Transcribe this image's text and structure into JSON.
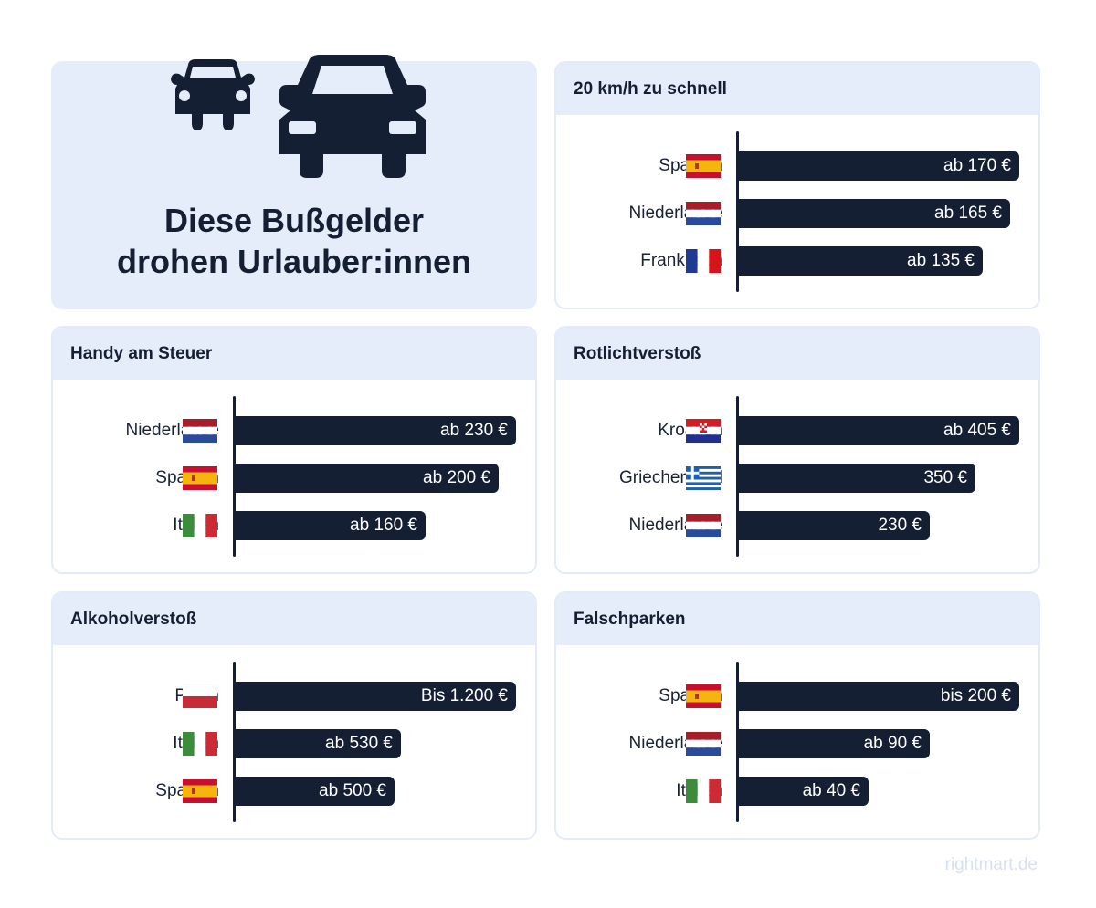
{
  "hero": {
    "title_line1": "Diese Bußgelder",
    "title_line2": "drohen Urlauber:innen",
    "icons": [
      "small-car-icon",
      "large-car-icon"
    ]
  },
  "colors": {
    "bar": "#141f33",
    "header_bg": "#e5edfa",
    "card_border": "#e3ebf8",
    "watermark": "#d6e0f2"
  },
  "watermark": "rightmart.de",
  "chart_data": [
    {
      "type": "bar",
      "orientation": "horizontal",
      "title": "20 km/h zu schnell",
      "categories": [
        "Spanien",
        "Niederlande",
        "Frankreich"
      ],
      "flags": [
        "es",
        "nl",
        "fr"
      ],
      "values": [
        170,
        165,
        135
      ],
      "value_labels": [
        "ab 170 €",
        "ab 165 €",
        "ab 135 €"
      ],
      "bar_fill_fraction": [
        1.0,
        0.968,
        0.87
      ],
      "unit": "€"
    },
    {
      "type": "bar",
      "orientation": "horizontal",
      "title": "Handy am Steuer",
      "categories": [
        "Niederlande",
        "Spanien",
        "Italien"
      ],
      "flags": [
        "nl",
        "es",
        "it"
      ],
      "values": [
        230,
        200,
        160
      ],
      "value_labels": [
        "ab 230 €",
        "ab 200 €",
        "ab 160 €"
      ],
      "bar_fill_fraction": [
        1.0,
        0.938,
        0.68
      ],
      "unit": "€"
    },
    {
      "type": "bar",
      "orientation": "horizontal",
      "title": "Rotlichtverstoß",
      "categories": [
        "Kroatien",
        "Griechenland",
        "Niederlande"
      ],
      "flags": [
        "hr",
        "gr",
        "nl"
      ],
      "values": [
        405,
        350,
        230
      ],
      "value_labels": [
        "ab 405 €",
        "350 €",
        "230 €"
      ],
      "bar_fill_fraction": [
        1.0,
        0.844,
        0.682
      ],
      "unit": "€"
    },
    {
      "type": "bar",
      "orientation": "horizontal",
      "title": "Alkoholverstoß",
      "categories": [
        "Polen",
        "Italien",
        "Spanien"
      ],
      "flags": [
        "pl",
        "it",
        "es"
      ],
      "values": [
        1200,
        530,
        500
      ],
      "value_labels": [
        "Bis 1.200 €",
        "ab 530 €",
        "ab 500 €"
      ],
      "bar_fill_fraction": [
        1.0,
        0.59,
        0.567
      ],
      "unit": "€"
    },
    {
      "type": "bar",
      "orientation": "horizontal",
      "title": "Falschparken",
      "categories": [
        "Spanien",
        "Niederlande",
        "Italien"
      ],
      "flags": [
        "es",
        "nl",
        "it"
      ],
      "values": [
        200,
        90,
        40
      ],
      "value_labels": [
        "bis 200 €",
        "ab 90 €",
        "ab 40 €"
      ],
      "bar_fill_fraction": [
        1.0,
        0.682,
        0.464
      ],
      "unit": "€"
    }
  ]
}
